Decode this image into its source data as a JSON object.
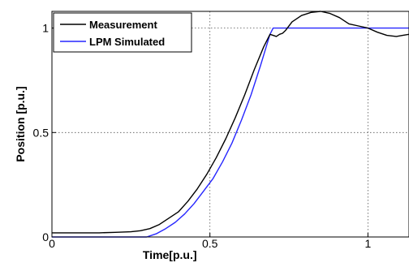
{
  "chart_data": {
    "type": "line",
    "xlabel": "Time[p.u.]",
    "ylabel": "Position [p.u.]",
    "xlim": [
      0,
      1.13
    ],
    "ylim": [
      0,
      1.08
    ],
    "xticks": [
      0,
      0.5,
      1
    ],
    "xtick_labels": [
      "0",
      "0.5",
      "1"
    ],
    "yticks": [
      0,
      0.5,
      1
    ],
    "ytick_labels": [
      "0",
      "0.5",
      "1"
    ],
    "grid": true,
    "grid_style": "dotted",
    "legend_position": "top-left",
    "series": [
      {
        "name": "Measurement",
        "color": "#000000",
        "x": [
          0,
          0.05,
          0.1,
          0.15,
          0.2,
          0.25,
          0.28,
          0.31,
          0.34,
          0.37,
          0.4,
          0.43,
          0.46,
          0.49,
          0.52,
          0.55,
          0.58,
          0.61,
          0.64,
          0.67,
          0.69,
          0.7,
          0.71,
          0.72,
          0.73,
          0.74,
          0.76,
          0.79,
          0.82,
          0.85,
          0.88,
          0.91,
          0.94,
          0.97,
          1.0,
          1.03,
          1.06,
          1.09,
          1.11,
          1.13
        ],
        "y": [
          0.02,
          0.02,
          0.02,
          0.02,
          0.022,
          0.025,
          0.03,
          0.04,
          0.06,
          0.09,
          0.12,
          0.17,
          0.23,
          0.3,
          0.38,
          0.47,
          0.57,
          0.68,
          0.8,
          0.91,
          0.97,
          0.965,
          0.96,
          0.97,
          0.975,
          0.99,
          1.03,
          1.06,
          1.075,
          1.08,
          1.07,
          1.05,
          1.02,
          1.01,
          1.0,
          0.98,
          0.965,
          0.96,
          0.965,
          0.97
        ]
      },
      {
        "name": "LPM Simulated",
        "color": "#2626ff",
        "x": [
          0,
          0.1,
          0.2,
          0.27,
          0.3,
          0.33,
          0.36,
          0.39,
          0.42,
          0.45,
          0.48,
          0.51,
          0.54,
          0.57,
          0.6,
          0.63,
          0.66,
          0.68,
          0.69,
          0.7,
          0.75,
          0.8,
          0.9,
          1.0,
          1.1,
          1.13
        ],
        "y": [
          0.0,
          0.0,
          0.0,
          0.0,
          0.0,
          0.015,
          0.04,
          0.07,
          0.11,
          0.16,
          0.22,
          0.28,
          0.36,
          0.45,
          0.56,
          0.68,
          0.82,
          0.92,
          0.97,
          1.0,
          1.0,
          1.0,
          1.0,
          1.0,
          1.0,
          1.0
        ]
      }
    ]
  }
}
